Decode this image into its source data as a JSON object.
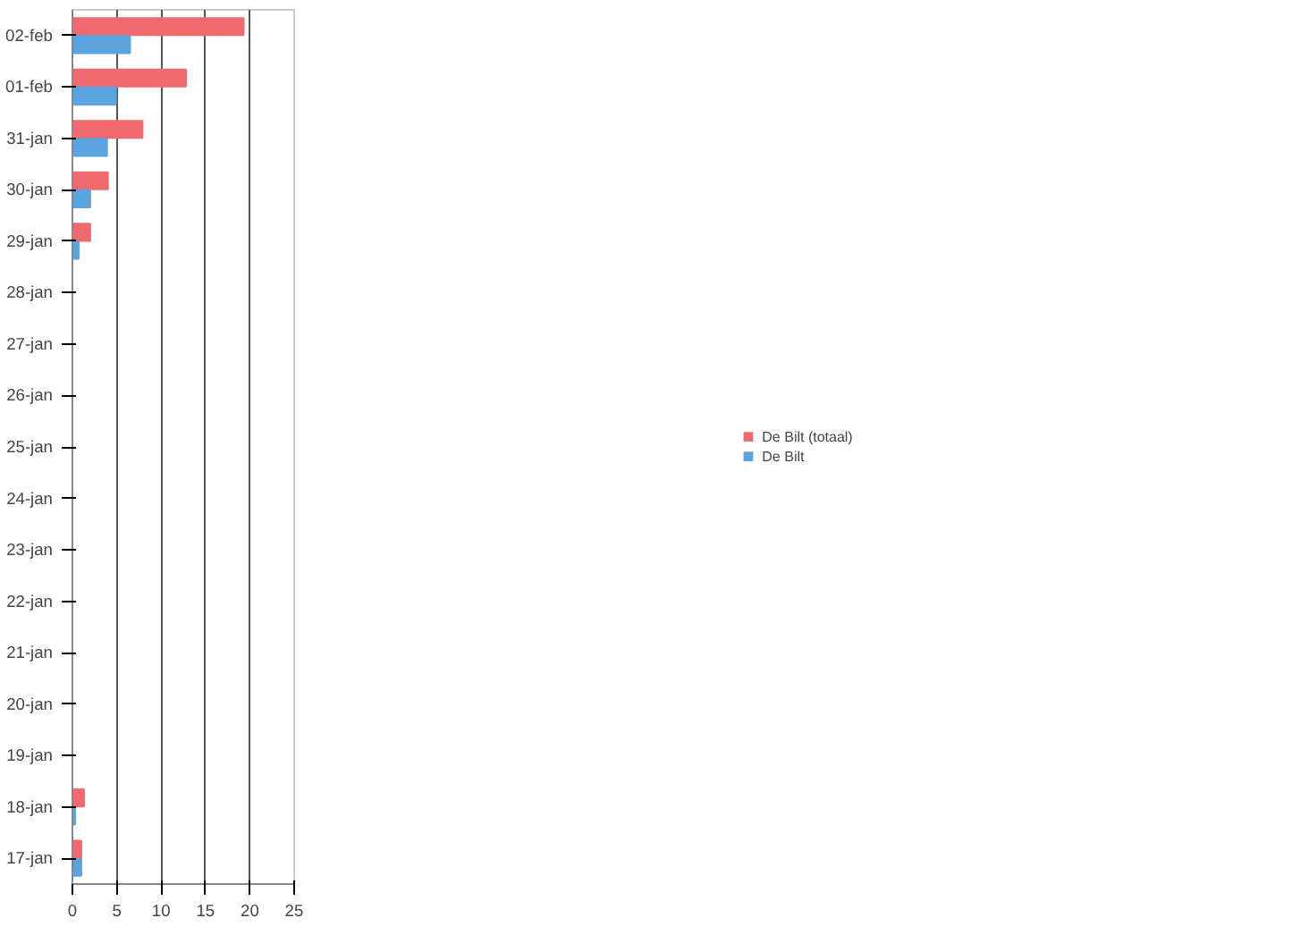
{
  "chart_data": {
    "type": "bar",
    "orientation": "horizontal",
    "categories": [
      "02-feb",
      "01-feb",
      "31-jan",
      "30-jan",
      "29-jan",
      "28-jan",
      "27-jan",
      "26-jan",
      "25-jan",
      "24-jan",
      "23-jan",
      "22-jan",
      "21-jan",
      "20-jan",
      "19-jan",
      "18-jan",
      "17-jan"
    ],
    "series": [
      {
        "name": "De Bilt (totaal)",
        "color": "#f0696e",
        "values": [
          19.3,
          12.8,
          7.9,
          4.0,
          2.0,
          null,
          null,
          null,
          null,
          null,
          null,
          null,
          null,
          null,
          null,
          1.3,
          1.0
        ]
      },
      {
        "name": "De Bilt",
        "color": "#5aa5e0",
        "values": [
          6.5,
          4.9,
          3.9,
          2.0,
          0.7,
          null,
          null,
          null,
          null,
          null,
          null,
          null,
          null,
          null,
          null,
          0.3,
          1.0
        ]
      }
    ],
    "xlim": [
      0,
      25
    ],
    "xticks": [
      0,
      5,
      10,
      15,
      20,
      25
    ],
    "grid": "x",
    "legend": "right"
  }
}
